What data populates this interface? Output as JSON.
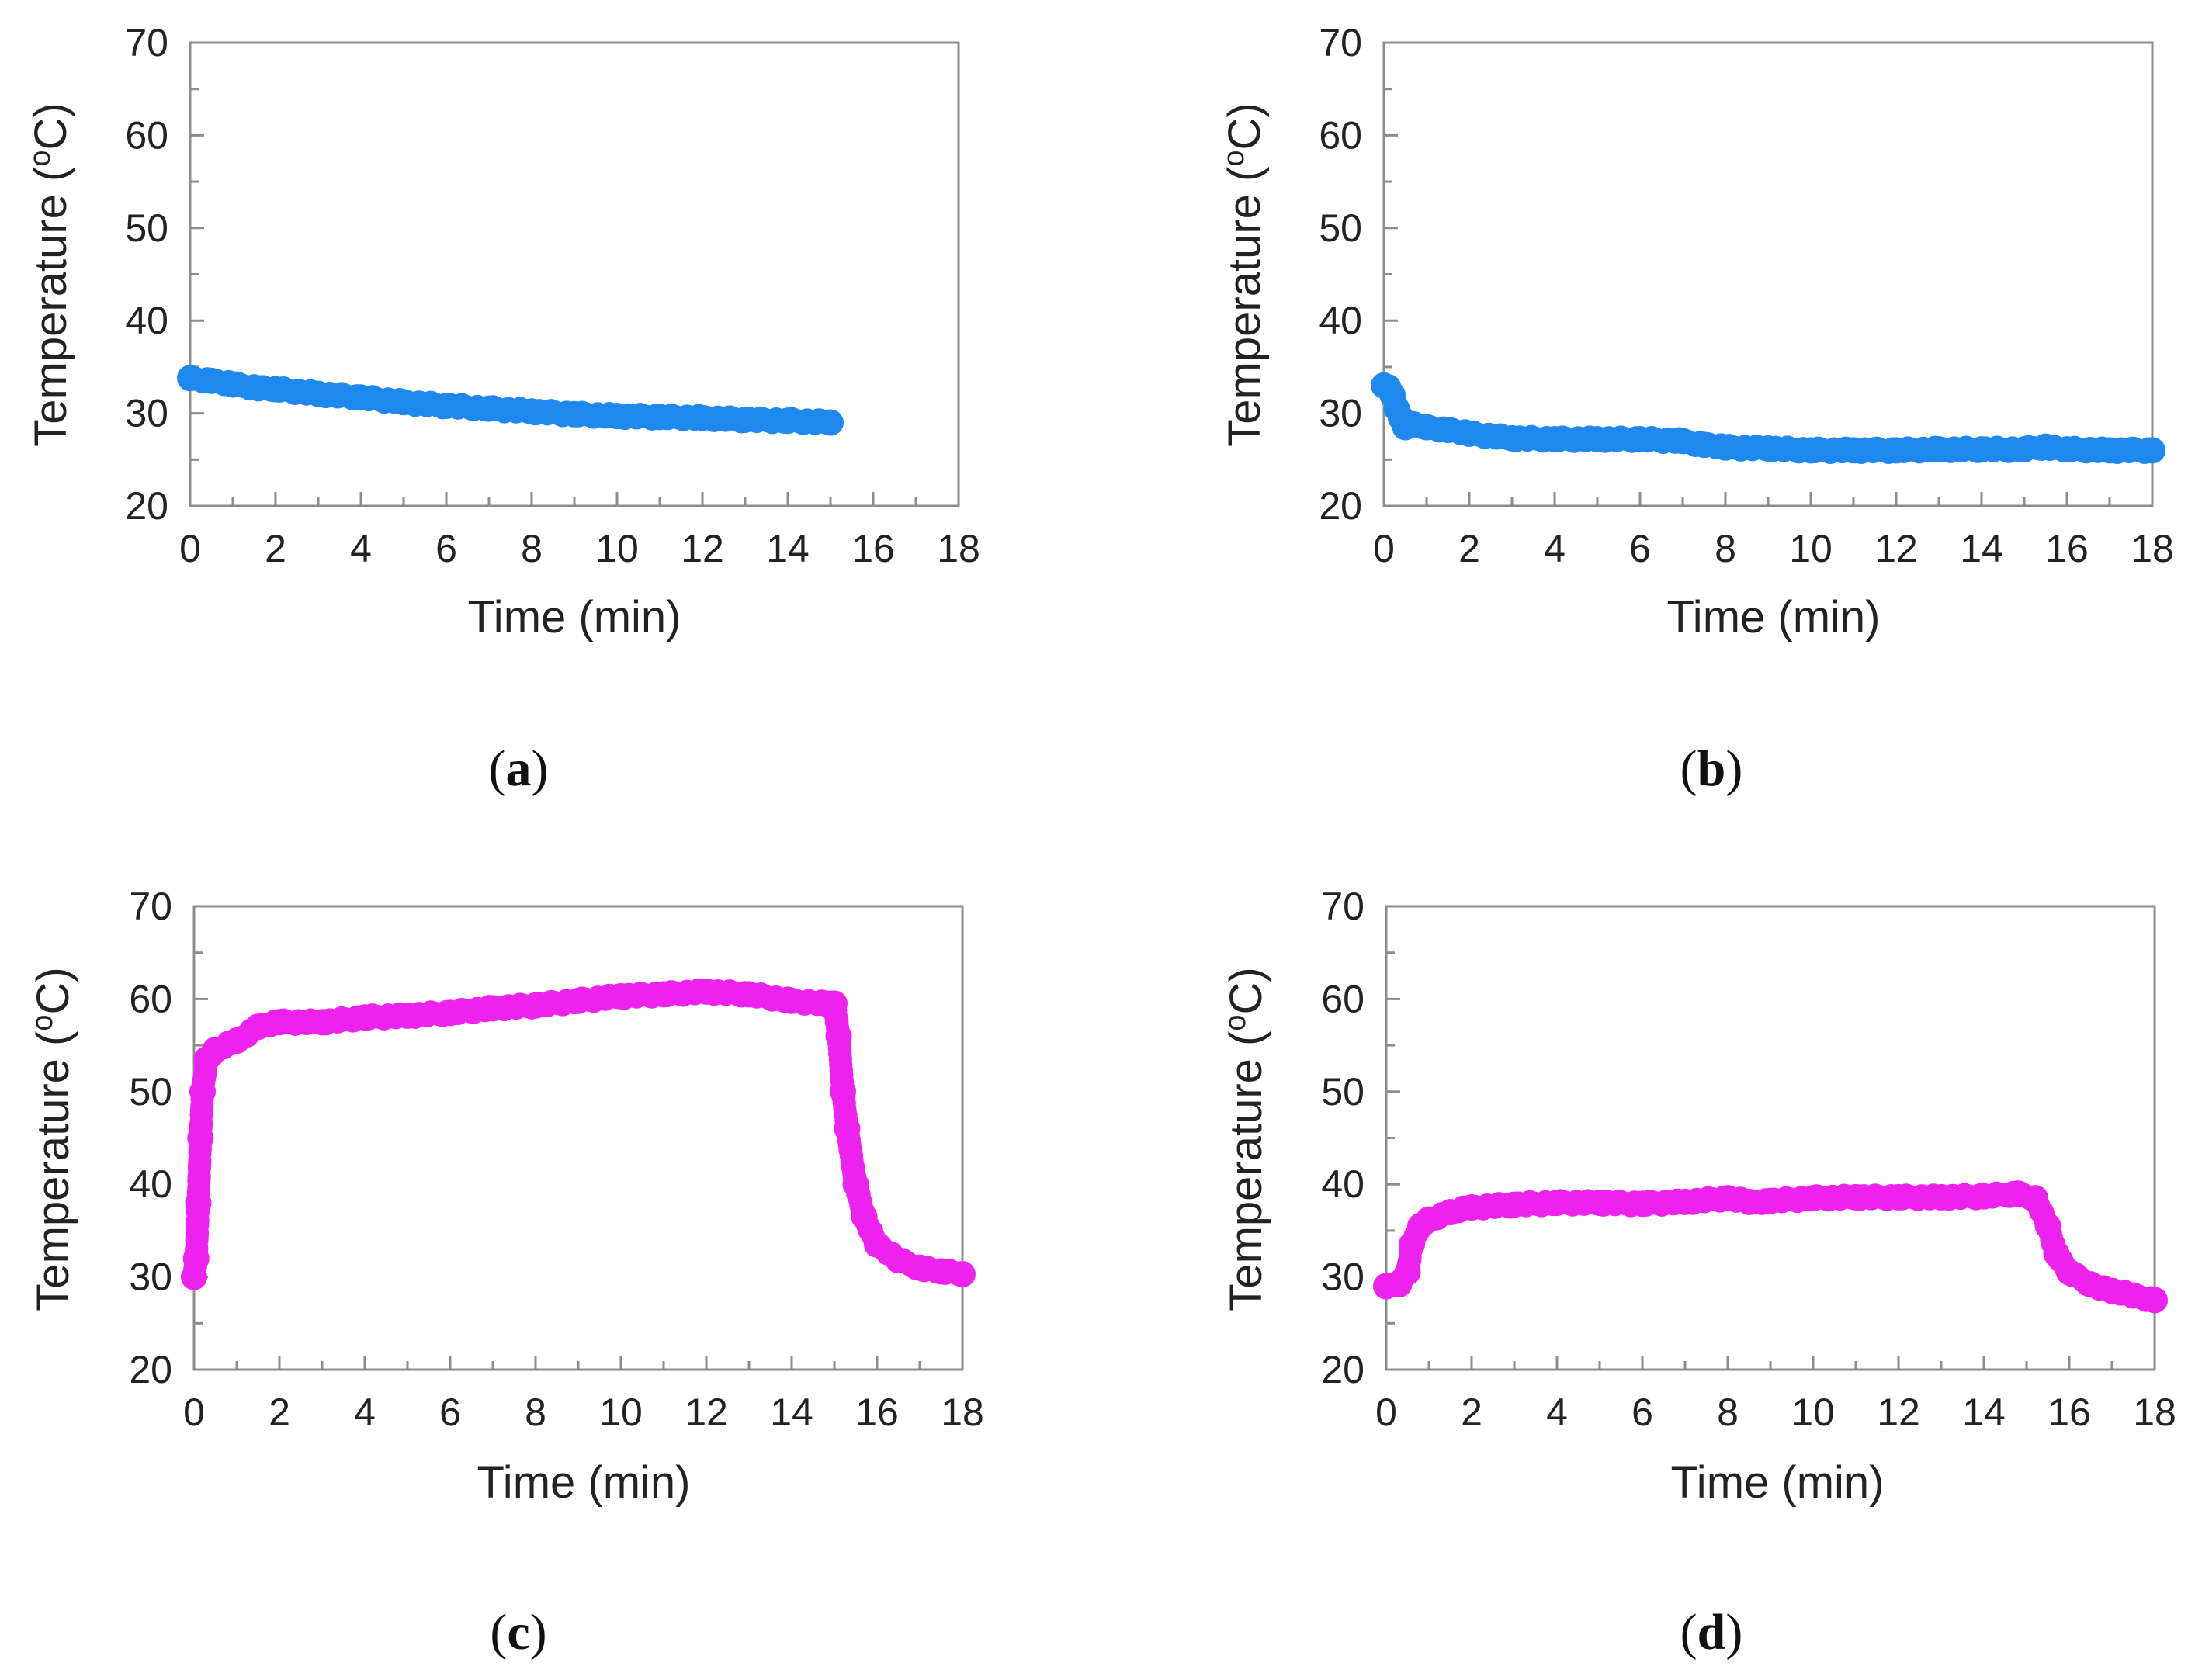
{
  "figure": {
    "description_labels": [
      "(a)",
      "(b)",
      "(c)",
      "(d)"
    ]
  },
  "chart_data": [
    {
      "id": "a",
      "type": "scatter",
      "panel_label": "a",
      "title": "",
      "xlabel": "Time (min)",
      "ylabel": "Temperature (°C)",
      "ylabel_main": "Temperature (",
      "ylabel_sup": "o",
      "ylabel_tail": "C)",
      "xlim": [
        0,
        18
      ],
      "ylim": [
        20,
        70
      ],
      "xticks": [
        "0",
        "2",
        "4",
        "6",
        "8",
        "10",
        "12",
        "14",
        "16",
        "18"
      ],
      "yticks": [
        "20",
        "30",
        "40",
        "50",
        "60",
        "70"
      ],
      "grid": false,
      "color": "#1e88ee",
      "series": [
        {
          "name": "Temperature",
          "x": [
            0,
            0.5,
            1,
            1.5,
            2,
            3,
            4,
            5,
            6,
            7,
            8,
            9,
            10,
            11,
            12,
            13,
            14,
            15
          ],
          "y": [
            33.8,
            33.5,
            33.1,
            32.8,
            32.6,
            32.1,
            31.7,
            31.2,
            30.8,
            30.5,
            30.2,
            29.9,
            29.7,
            29.6,
            29.5,
            29.3,
            29.2,
            29.0
          ]
        }
      ]
    },
    {
      "id": "b",
      "type": "scatter",
      "panel_label": "b",
      "title": "",
      "xlabel": "Time (min)",
      "ylabel": "Temperature (°C)",
      "ylabel_main": "Temperature (",
      "ylabel_sup": "o",
      "ylabel_tail": "C)",
      "xlim": [
        0,
        18
      ],
      "ylim": [
        20,
        70
      ],
      "xticks": [
        "0",
        "2",
        "4",
        "6",
        "8",
        "10",
        "12",
        "14",
        "16",
        "18"
      ],
      "yticks": [
        "20",
        "30",
        "40",
        "50",
        "60",
        "70"
      ],
      "grid": false,
      "color": "#1e88ee",
      "series": [
        {
          "name": "Temperature",
          "x": [
            0,
            0.1,
            0.2,
            0.3,
            0.4,
            0.5,
            0.7,
            1,
            1.5,
            2,
            3,
            4,
            5,
            6,
            7,
            7.5,
            8,
            9,
            10,
            11,
            12,
            13,
            14,
            15,
            15.5,
            16,
            17,
            18
          ],
          "y": [
            33.0,
            32.8,
            32.0,
            30.5,
            29.5,
            28.5,
            28.8,
            28.5,
            28.2,
            27.8,
            27.3,
            27.2,
            27.2,
            27.2,
            27.0,
            26.6,
            26.3,
            26.2,
            26.0,
            26.0,
            26.0,
            26.1,
            26.1,
            26.1,
            26.4,
            26.1,
            26.0,
            26.0
          ]
        }
      ]
    },
    {
      "id": "c",
      "type": "scatter",
      "panel_label": "c",
      "title": "",
      "xlabel": "Time (min)",
      "ylabel": "Temperature (°C)",
      "ylabel_main": "Temperature (",
      "ylabel_sup": "o",
      "ylabel_tail": "C)",
      "xlim": [
        0,
        18
      ],
      "ylim": [
        20,
        70
      ],
      "xticks": [
        "0",
        "2",
        "4",
        "6",
        "8",
        "10",
        "12",
        "14",
        "16",
        "18"
      ],
      "yticks": [
        "20",
        "30",
        "40",
        "50",
        "60",
        "70"
      ],
      "grid": false,
      "color": "#ee22ee",
      "series": [
        {
          "name": "Temperature",
          "x": [
            0,
            0.05,
            0.1,
            0.15,
            0.2,
            0.3,
            0.5,
            1,
            1.5,
            2,
            3,
            4,
            5,
            6,
            7,
            8,
            9,
            10,
            11,
            12,
            13,
            14,
            14.8,
            15,
            15.1,
            15.2,
            15.3,
            15.5,
            15.7,
            16,
            16.5,
            17,
            17.5,
            18
          ],
          "y": [
            30,
            32,
            38,
            45,
            50,
            53.5,
            54.5,
            55.5,
            57,
            57.5,
            57.5,
            58,
            58.2,
            58.5,
            59,
            59.3,
            59.8,
            60.3,
            60.5,
            60.8,
            60.5,
            59.8,
            59.5,
            59.5,
            56,
            50,
            46,
            40,
            36.5,
            33.5,
            31.8,
            31,
            30.6,
            30.3
          ]
        }
      ]
    },
    {
      "id": "d",
      "type": "scatter",
      "panel_label": "d",
      "title": "",
      "xlabel": "Time (min)",
      "ylabel": "Temperature (°C)",
      "ylabel_main": "Temperature (",
      "ylabel_sup": "o",
      "ylabel_tail": "C)",
      "xlim": [
        0,
        18
      ],
      "ylim": [
        20,
        70
      ],
      "xticks": [
        "0",
        "2",
        "4",
        "6",
        "8",
        "10",
        "12",
        "14",
        "16",
        "18"
      ],
      "yticks": [
        "20",
        "30",
        "40",
        "50",
        "60",
        "70"
      ],
      "grid": false,
      "color": "#ee22ee",
      "series": [
        {
          "name": "Temperature",
          "x": [
            0,
            0.3,
            0.5,
            0.6,
            0.8,
            1,
            1.5,
            2,
            3,
            4,
            5,
            6,
            7,
            8,
            8.5,
            9,
            10,
            11,
            12,
            13,
            14,
            14.8,
            15.2,
            15.5,
            15.7,
            16,
            16.5,
            17,
            17.5,
            18
          ],
          "y": [
            29,
            29.2,
            30.5,
            33.5,
            35.5,
            36.2,
            37,
            37.5,
            37.8,
            38,
            38,
            37.9,
            38.1,
            38.5,
            38.1,
            38.2,
            38.5,
            38.6,
            38.6,
            38.6,
            38.7,
            39.0,
            38.5,
            35.5,
            32.5,
            30.5,
            29.2,
            28.5,
            28.0,
            27.5
          ]
        }
      ]
    }
  ]
}
